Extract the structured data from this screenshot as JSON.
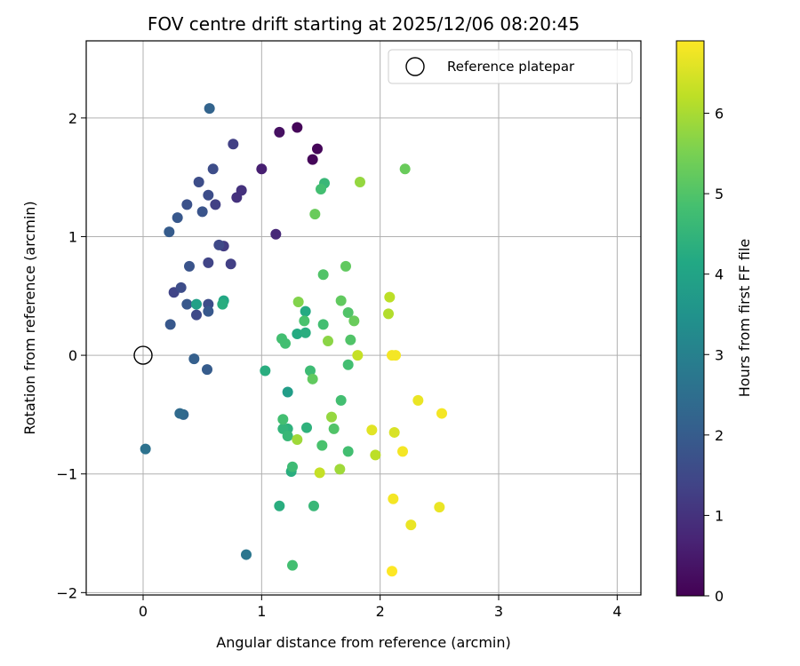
{
  "chart_data": {
    "type": "scatter",
    "title": "FOV centre drift starting at 2025/12/06 08:20:45",
    "xlabel": "Angular distance from reference (arcmin)",
    "ylabel": "Rotation from reference (arcmin)",
    "xlim": [
      -0.48,
      4.2
    ],
    "ylim": [
      -2.02,
      2.65
    ],
    "xticks": [
      0,
      1,
      2,
      3,
      4
    ],
    "yticks": [
      -2,
      -1,
      0,
      1,
      2
    ],
    "xtick_labels": [
      "0",
      "1",
      "2",
      "3",
      "4"
    ],
    "ytick_labels": [
      "−2",
      "−1",
      "0",
      "1",
      "2"
    ],
    "grid": true,
    "legend": {
      "position": "top-right",
      "entries": [
        "Reference platepar"
      ]
    },
    "reference_point": {
      "x": 0,
      "y": 0
    },
    "colorbar": {
      "label": "Hours from first FF file",
      "min": 0,
      "max": 6.9,
      "ticks": [
        0,
        1,
        2,
        3,
        4,
        5,
        6
      ],
      "tick_labels": [
        "0",
        "1",
        "2",
        "3",
        "4",
        "5",
        "6"
      ],
      "colormap": "viridis"
    },
    "points": [
      {
        "x": 1.3,
        "y": 1.92,
        "h": 0.1
      },
      {
        "x": 1.15,
        "y": 1.88,
        "h": 0.3
      },
      {
        "x": 1.47,
        "y": 1.74,
        "h": 0.1
      },
      {
        "x": 1.43,
        "y": 1.65,
        "h": 0.1
      },
      {
        "x": 1.0,
        "y": 1.57,
        "h": 0.6
      },
      {
        "x": 1.12,
        "y": 1.02,
        "h": 0.8
      },
      {
        "x": 0.56,
        "y": 2.08,
        "h": 2.2
      },
      {
        "x": 0.76,
        "y": 1.78,
        "h": 1.3
      },
      {
        "x": 0.59,
        "y": 1.57,
        "h": 1.6
      },
      {
        "x": 0.47,
        "y": 1.46,
        "h": 1.6
      },
      {
        "x": 0.83,
        "y": 1.39,
        "h": 1.0
      },
      {
        "x": 0.55,
        "y": 1.35,
        "h": 1.6
      },
      {
        "x": 0.79,
        "y": 1.33,
        "h": 1.0
      },
      {
        "x": 0.37,
        "y": 1.27,
        "h": 1.7
      },
      {
        "x": 0.61,
        "y": 1.27,
        "h": 1.3
      },
      {
        "x": 0.5,
        "y": 1.21,
        "h": 1.8
      },
      {
        "x": 0.29,
        "y": 1.16,
        "h": 1.9
      },
      {
        "x": 0.22,
        "y": 1.04,
        "h": 2.0
      },
      {
        "x": 0.64,
        "y": 0.93,
        "h": 1.5
      },
      {
        "x": 0.68,
        "y": 0.92,
        "h": 1.2
      },
      {
        "x": 0.55,
        "y": 0.78,
        "h": 1.4
      },
      {
        "x": 0.74,
        "y": 0.77,
        "h": 1.3
      },
      {
        "x": 0.39,
        "y": 0.75,
        "h": 1.8
      },
      {
        "x": 0.32,
        "y": 0.57,
        "h": 1.6
      },
      {
        "x": 0.26,
        "y": 0.53,
        "h": 1.4
      },
      {
        "x": 0.37,
        "y": 0.43,
        "h": 1.9
      },
      {
        "x": 0.45,
        "y": 0.43,
        "h": 3.9
      },
      {
        "x": 0.55,
        "y": 0.43,
        "h": 1.6
      },
      {
        "x": 0.68,
        "y": 0.46,
        "h": 4.1
      },
      {
        "x": 0.67,
        "y": 0.43,
        "h": 4.3
      },
      {
        "x": 0.55,
        "y": 0.37,
        "h": 1.9
      },
      {
        "x": 0.45,
        "y": 0.34,
        "h": 1.5
      },
      {
        "x": 0.23,
        "y": 0.26,
        "h": 1.9
      },
      {
        "x": 0.43,
        "y": -0.03,
        "h": 2.1
      },
      {
        "x": 0.54,
        "y": -0.12,
        "h": 2.0
      },
      {
        "x": 0.31,
        "y": -0.49,
        "h": 2.4
      },
      {
        "x": 0.34,
        "y": -0.5,
        "h": 2.3
      },
      {
        "x": 0.02,
        "y": -0.79,
        "h": 2.6
      },
      {
        "x": 0.87,
        "y": -1.68,
        "h": 2.7
      },
      {
        "x": 1.03,
        "y": -0.13,
        "h": 4.3
      },
      {
        "x": 1.22,
        "y": -0.31,
        "h": 3.8
      },
      {
        "x": 1.17,
        "y": 0.14,
        "h": 4.8
      },
      {
        "x": 1.2,
        "y": 0.1,
        "h": 4.8
      },
      {
        "x": 1.3,
        "y": 0.18,
        "h": 4.2
      },
      {
        "x": 1.37,
        "y": 0.19,
        "h": 4.3
      },
      {
        "x": 1.36,
        "y": 0.29,
        "h": 4.9
      },
      {
        "x": 1.37,
        "y": 0.37,
        "h": 4.2
      },
      {
        "x": 1.31,
        "y": 0.45,
        "h": 5.6
      },
      {
        "x": 1.52,
        "y": 0.68,
        "h": 5.0
      },
      {
        "x": 1.52,
        "y": 0.26,
        "h": 4.8
      },
      {
        "x": 1.56,
        "y": 0.12,
        "h": 5.7
      },
      {
        "x": 1.67,
        "y": 0.46,
        "h": 5.2
      },
      {
        "x": 1.71,
        "y": 0.75,
        "h": 5.2
      },
      {
        "x": 1.73,
        "y": 0.36,
        "h": 5.0
      },
      {
        "x": 1.78,
        "y": 0.29,
        "h": 5.3
      },
      {
        "x": 1.75,
        "y": 0.13,
        "h": 5.0
      },
      {
        "x": 1.81,
        "y": 0.0,
        "h": 6.3
      },
      {
        "x": 1.73,
        "y": -0.08,
        "h": 4.8
      },
      {
        "x": 1.41,
        "y": -0.13,
        "h": 4.7
      },
      {
        "x": 1.43,
        "y": -0.2,
        "h": 5.2
      },
      {
        "x": 1.67,
        "y": -0.38,
        "h": 4.8
      },
      {
        "x": 1.59,
        "y": -0.52,
        "h": 5.8
      },
      {
        "x": 1.18,
        "y": -0.54,
        "h": 4.8
      },
      {
        "x": 1.18,
        "y": -0.62,
        "h": 4.5
      },
      {
        "x": 1.22,
        "y": -0.62,
        "h": 4.4
      },
      {
        "x": 1.38,
        "y": -0.61,
        "h": 4.4
      },
      {
        "x": 1.61,
        "y": -0.62,
        "h": 5.0
      },
      {
        "x": 1.22,
        "y": -0.68,
        "h": 4.6
      },
      {
        "x": 1.3,
        "y": -0.71,
        "h": 5.9
      },
      {
        "x": 1.51,
        "y": -0.76,
        "h": 4.9
      },
      {
        "x": 1.73,
        "y": -0.81,
        "h": 4.8
      },
      {
        "x": 1.26,
        "y": -0.94,
        "h": 4.7
      },
      {
        "x": 1.25,
        "y": -0.98,
        "h": 4.3
      },
      {
        "x": 1.49,
        "y": -0.99,
        "h": 6.3
      },
      {
        "x": 1.66,
        "y": -0.96,
        "h": 5.9
      },
      {
        "x": 1.15,
        "y": -1.27,
        "h": 4.3
      },
      {
        "x": 1.44,
        "y": -1.27,
        "h": 4.6
      },
      {
        "x": 1.26,
        "y": -1.77,
        "h": 4.8
      },
      {
        "x": 1.45,
        "y": 1.19,
        "h": 5.3
      },
      {
        "x": 1.5,
        "y": 1.4,
        "h": 4.8
      },
      {
        "x": 1.53,
        "y": 1.45,
        "h": 4.6
      },
      {
        "x": 1.83,
        "y": 1.46,
        "h": 5.8
      },
      {
        "x": 2.21,
        "y": 1.57,
        "h": 5.3
      },
      {
        "x": 2.08,
        "y": 0.49,
        "h": 6.2
      },
      {
        "x": 2.07,
        "y": 0.35,
        "h": 6.1
      },
      {
        "x": 2.1,
        "y": 0.0,
        "h": 6.8
      },
      {
        "x": 2.13,
        "y": 0.0,
        "h": 6.8
      },
      {
        "x": 2.32,
        "y": -0.38,
        "h": 6.7
      },
      {
        "x": 2.52,
        "y": -0.49,
        "h": 6.8
      },
      {
        "x": 1.93,
        "y": -0.63,
        "h": 6.6
      },
      {
        "x": 2.12,
        "y": -0.65,
        "h": 6.5
      },
      {
        "x": 1.96,
        "y": -0.84,
        "h": 6.2
      },
      {
        "x": 2.19,
        "y": -0.81,
        "h": 6.8
      },
      {
        "x": 2.11,
        "y": -1.21,
        "h": 6.8
      },
      {
        "x": 2.5,
        "y": -1.28,
        "h": 6.7
      },
      {
        "x": 2.26,
        "y": -1.43,
        "h": 6.7
      },
      {
        "x": 2.1,
        "y": -1.82,
        "h": 6.9
      }
    ]
  }
}
